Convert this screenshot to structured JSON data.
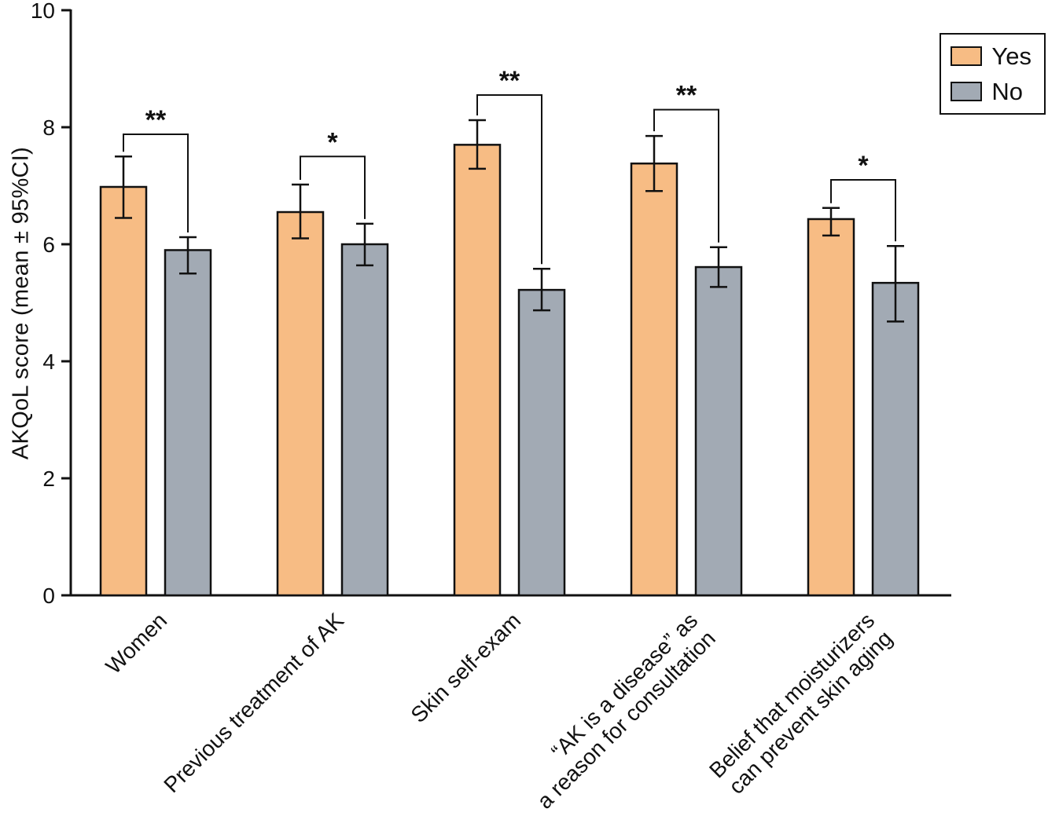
{
  "figure": {
    "background": "#ffffff",
    "axis_color": "#111111"
  },
  "chart_data": {
    "type": "bar",
    "title": "",
    "xlabel": "",
    "ylabel": "AKQoL score (mean ± 95%CI)",
    "ylim": [
      0,
      10
    ],
    "yticks": [
      0,
      2,
      4,
      6,
      8,
      10
    ],
    "grid": false,
    "legend_position": "top-right",
    "categories": [
      "Women",
      "Previous treatment of AK",
      "Skin self-exam",
      "“AK is a disease” as\na reason for consultation",
      "Belief that moisturizers\ncan prevent skin aging"
    ],
    "series": [
      {
        "name": "Yes",
        "color": "#F7BC84",
        "values": [
          6.98,
          6.55,
          7.7,
          7.38,
          6.43
        ],
        "ci_low": [
          6.45,
          6.1,
          7.29,
          6.91,
          6.15
        ],
        "ci_high": [
          7.5,
          7.02,
          8.12,
          7.85,
          6.62
        ]
      },
      {
        "name": "No",
        "color": "#A2AAB4",
        "values": [
          5.9,
          6.0,
          5.22,
          5.61,
          5.34
        ],
        "ci_low": [
          5.5,
          5.64,
          4.87,
          5.27,
          4.68
        ],
        "ci_high": [
          6.12,
          6.35,
          5.58,
          5.95,
          5.97
        ]
      }
    ],
    "significance": [
      {
        "label": "**",
        "bracket_y": 7.88
      },
      {
        "label": "*",
        "bracket_y": 7.5
      },
      {
        "label": "**",
        "bracket_y": 8.55
      },
      {
        "label": "**",
        "bracket_y": 8.3
      },
      {
        "label": "*",
        "bracket_y": 7.1
      }
    ]
  }
}
